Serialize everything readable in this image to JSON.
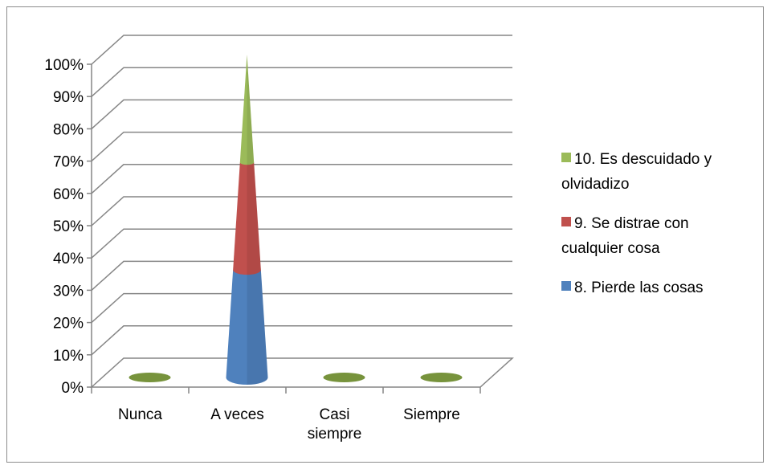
{
  "chart_data": {
    "type": "bar",
    "subtype": "3d-stacked-percent-cone",
    "categories": [
      "Nunca",
      "A veces",
      "Casi siempre",
      "Siempre"
    ],
    "category_lines": [
      [
        "Nunca"
      ],
      [
        "A veces"
      ],
      [
        "Casi",
        "siempre"
      ],
      [
        "Siempre"
      ]
    ],
    "series": [
      {
        "name": "8.  Pierde las cosas",
        "name_lines": [
          "8.  Pierde las cosas"
        ],
        "color": "#4f81bd",
        "values": [
          0,
          33.3,
          0,
          0
        ]
      },
      {
        "name": "9.    Se distrae con cualquier cosa",
        "name_lines": [
          "9.    Se distrae con",
          "cualquier cosa"
        ],
        "color": "#c0504d",
        "values": [
          0,
          33.3,
          0,
          0
        ]
      },
      {
        "name": "10.    Es descuidado y olvidadizo",
        "name_lines": [
          "10.    Es descuidado y",
          "olvidadizo"
        ],
        "color": "#9bbb59",
        "values": [
          0,
          33.4,
          0,
          0
        ]
      }
    ],
    "y_ticks": [
      "0%",
      "10%",
      "20%",
      "30%",
      "40%",
      "50%",
      "60%",
      "70%",
      "80%",
      "90%",
      "100%"
    ],
    "ylim": [
      0,
      100
    ],
    "grid": true,
    "legend_position": "right",
    "title": "",
    "xlabel": "",
    "ylabel": "",
    "empty_marker_color": "#77933c"
  }
}
